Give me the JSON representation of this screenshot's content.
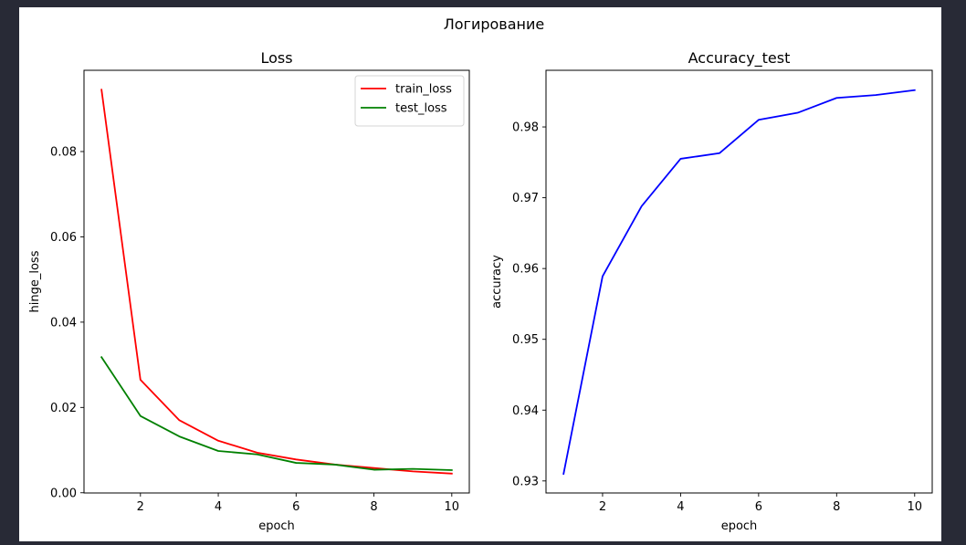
{
  "figure": {
    "suptitle": "Логирование",
    "background": "#ffffff",
    "page_background": "#282a36"
  },
  "chart_data": [
    {
      "type": "line",
      "title": "Loss",
      "xlabel": "epoch",
      "ylabel": "hinge_loss",
      "x": [
        1,
        2,
        3,
        4,
        5,
        6,
        7,
        8,
        9,
        10
      ],
      "series": [
        {
          "name": "train_loss",
          "color": "#ff0000",
          "values": [
            0.0945,
            0.0265,
            0.017,
            0.0122,
            0.0094,
            0.0078,
            0.0066,
            0.0058,
            0.005,
            0.0045
          ]
        },
        {
          "name": "test_loss",
          "color": "#008000",
          "values": [
            0.0318,
            0.018,
            0.0132,
            0.0098,
            0.009,
            0.007,
            0.0066,
            0.0054,
            0.0056,
            0.0053
          ]
        }
      ],
      "xlim": [
        0.55,
        10.45
      ],
      "ylim": [
        -5e-05,
        0.09905
      ],
      "xticks": [
        2,
        4,
        6,
        8,
        10
      ],
      "xtick_labels": [
        "2",
        "4",
        "6",
        "8",
        "10"
      ],
      "yticks": [
        0.0,
        0.02,
        0.04,
        0.06,
        0.08
      ],
      "ytick_labels": [
        "0.00",
        "0.02",
        "0.04",
        "0.06",
        "0.08"
      ],
      "legend": "upper right",
      "grid": false
    },
    {
      "type": "line",
      "title": "Accuracy_test",
      "xlabel": "epoch",
      "ylabel": "accuracy",
      "x": [
        1,
        2,
        3,
        4,
        5,
        6,
        7,
        8,
        9,
        10
      ],
      "series": [
        {
          "name": "accuracy",
          "color": "#0000ff",
          "values": [
            0.931,
            0.9589,
            0.9688,
            0.9755,
            0.9763,
            0.981,
            0.982,
            0.9841,
            0.9845,
            0.9852
          ]
        }
      ],
      "xlim": [
        0.55,
        10.45
      ],
      "ylim": [
        0.9283,
        0.988
      ],
      "xticks": [
        2,
        4,
        6,
        8,
        10
      ],
      "xtick_labels": [
        "2",
        "4",
        "6",
        "8",
        "10"
      ],
      "yticks": [
        0.93,
        0.94,
        0.95,
        0.96,
        0.97,
        0.98
      ],
      "ytick_labels": [
        "0.93",
        "0.94",
        "0.95",
        "0.96",
        "0.97",
        "0.98"
      ],
      "legend": "none",
      "grid": false
    }
  ]
}
